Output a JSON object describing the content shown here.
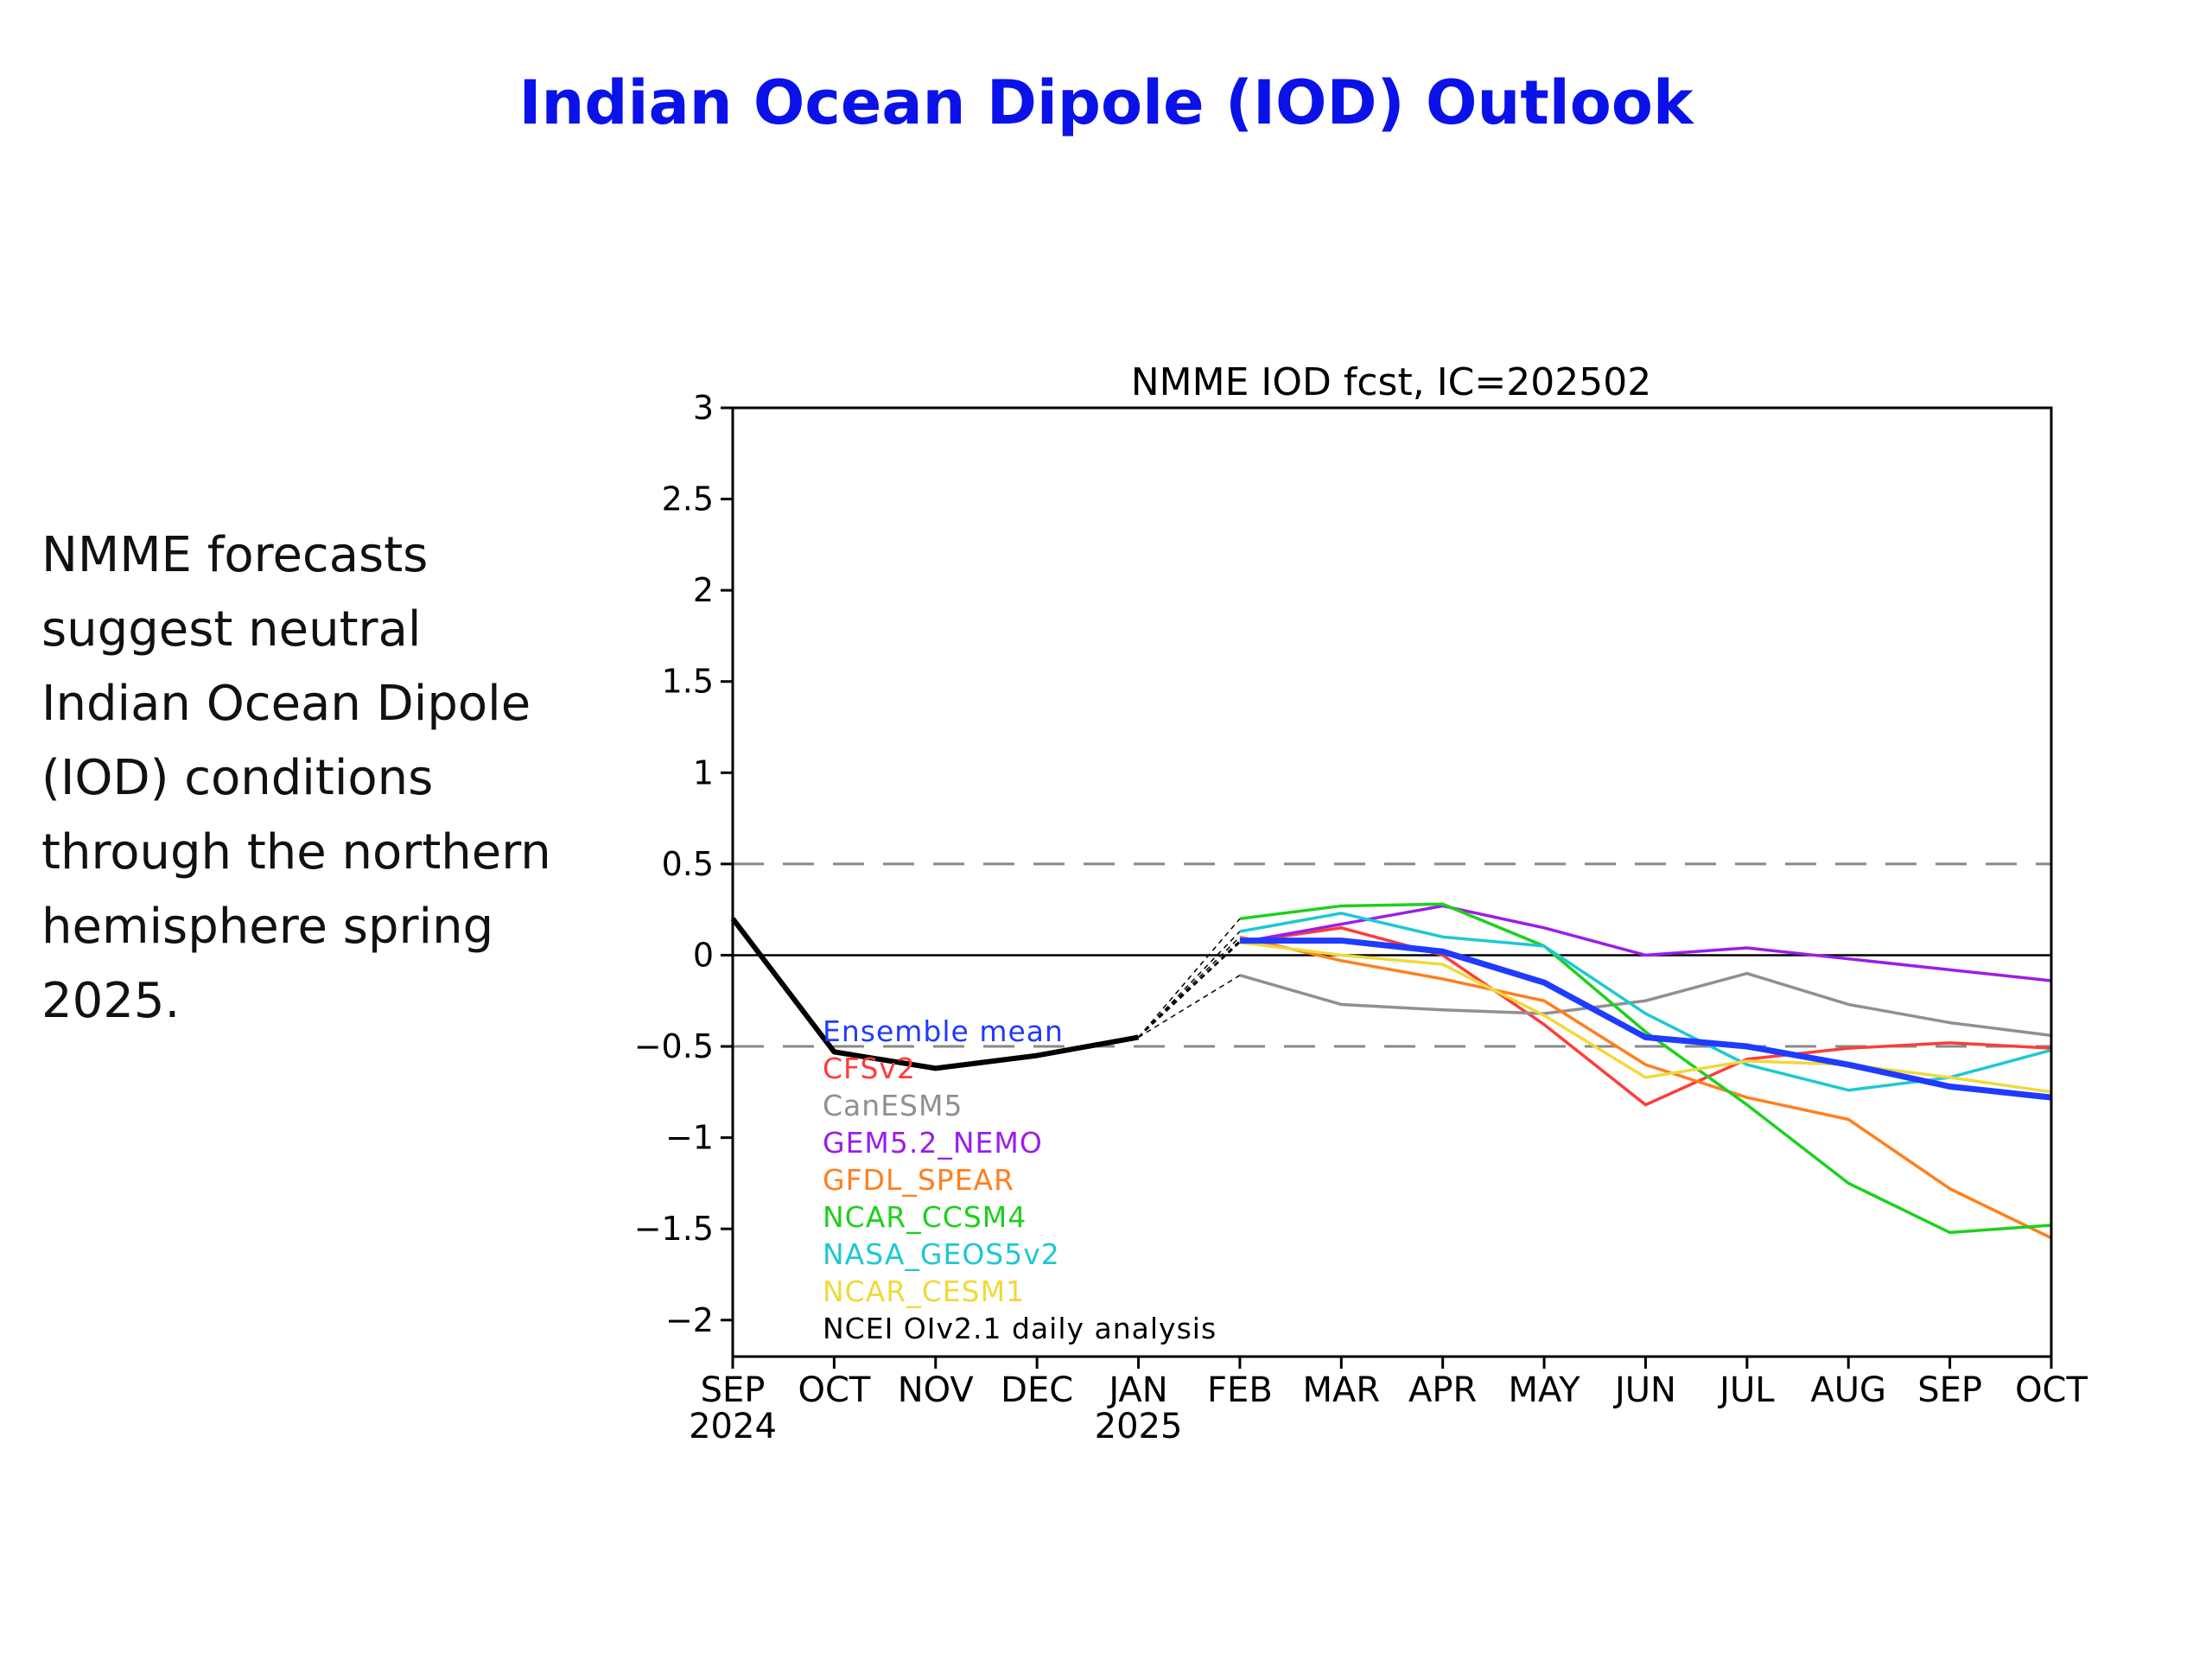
{
  "slide": {
    "title": "Indian Ocean Dipole (IOD) Outlook",
    "text_lines": [
      "NMME forecasts",
      "suggest neutral",
      "Indian Ocean Dipole",
      "(IOD) conditions",
      "through the northern",
      "hemisphere spring",
      "2025."
    ]
  },
  "chart_data": {
    "type": "line",
    "title": "NMME IOD fcst, IC=202502",
    "ylim": [
      -2.2,
      3
    ],
    "yticks": [
      3,
      2.5,
      2,
      1.5,
      1,
      0.5,
      0,
      -0.5,
      -1,
      -1.5,
      -2
    ],
    "ytick_labels": [
      "3",
      "2.5",
      "2",
      "1.5",
      "1",
      "0.5",
      "0",
      "−0.5",
      "−1",
      "−1.5",
      "−2"
    ],
    "x_labels": [
      {
        "month": "SEP",
        "year": "2024"
      },
      {
        "month": "OCT",
        "year": ""
      },
      {
        "month": "NOV",
        "year": ""
      },
      {
        "month": "DEC",
        "year": ""
      },
      {
        "month": "JAN",
        "year": "2025"
      },
      {
        "month": "FEB",
        "year": ""
      },
      {
        "month": "MAR",
        "year": ""
      },
      {
        "month": "APR",
        "year": ""
      },
      {
        "month": "MAY",
        "year": ""
      },
      {
        "month": "JUN",
        "year": ""
      },
      {
        "month": "JUL",
        "year": ""
      },
      {
        "month": "AUG",
        "year": ""
      },
      {
        "month": "SEP",
        "year": ""
      },
      {
        "month": "OCT",
        "year": ""
      }
    ],
    "reference_lines": [
      {
        "y": 0.5,
        "style": "dashed",
        "color": "#888888"
      },
      {
        "y": 0,
        "style": "solid",
        "color": "#000000"
      },
      {
        "y": -0.5,
        "style": "dashed",
        "color": "#888888"
      }
    ],
    "observed": {
      "name": "NCEI OIv2.1 daily analysis",
      "color": "#000000",
      "x_index": [
        0,
        1,
        2,
        3,
        4
      ],
      "values": [
        0.2,
        -0.53,
        -0.62,
        -0.55,
        -0.45
      ]
    },
    "member_spread_start": {
      "x_index": 4,
      "value": -0.45
    },
    "series": [
      {
        "name": "Ensemble mean",
        "color": "#1f3bff",
        "bold": true,
        "values": [
          0.08,
          0.08,
          0.02,
          -0.15,
          -0.45,
          -0.5,
          -0.6,
          -0.72,
          -0.78
        ]
      },
      {
        "name": "CFSv2",
        "color": "#ff3b3b",
        "values": [
          0.07,
          0.15,
          0.0,
          -0.38,
          -0.82,
          -0.57,
          -0.51,
          -0.48,
          -0.51
        ]
      },
      {
        "name": "CanESM5",
        "color": "#909090",
        "values": [
          -0.11,
          -0.27,
          -0.3,
          -0.32,
          -0.25,
          -0.1,
          -0.27,
          -0.37,
          -0.44
        ]
      },
      {
        "name": "GEM5.2_NEMO",
        "color": "#9a1ee8",
        "values": [
          0.07,
          0.17,
          0.27,
          0.15,
          0.0,
          0.04,
          -0.02,
          -0.08,
          -0.14
        ]
      },
      {
        "name": "GFDL_SPEAR",
        "color": "#ff7f1e",
        "values": [
          0.1,
          -0.03,
          -0.13,
          -0.25,
          -0.6,
          -0.78,
          -0.9,
          -1.28,
          -1.55
        ]
      },
      {
        "name": "NCAR_CCSM4",
        "color": "#1ed01e",
        "values": [
          0.2,
          0.27,
          0.28,
          0.05,
          -0.42,
          -0.82,
          -1.25,
          -1.52,
          -1.48
        ]
      },
      {
        "name": "NASA_GEOS5v2",
        "color": "#1ec8d2",
        "values": [
          0.13,
          0.23,
          0.1,
          0.05,
          -0.32,
          -0.6,
          -0.74,
          -0.67,
          -0.52
        ]
      },
      {
        "name": "NCAR_CESM1",
        "color": "#f0d93a",
        "values": [
          0.07,
          0.0,
          -0.05,
          -0.33,
          -0.67,
          -0.58,
          -0.6,
          -0.67,
          -0.75
        ]
      }
    ],
    "forecast_x_start": 5
  }
}
